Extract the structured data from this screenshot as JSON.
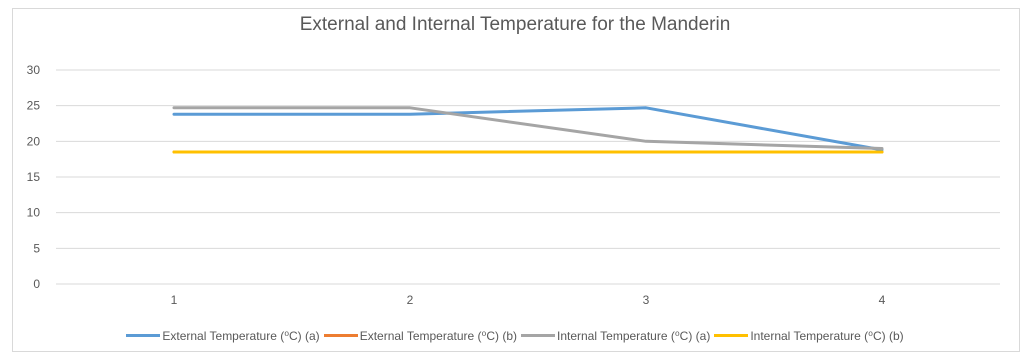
{
  "chart_data": {
    "type": "line",
    "title": "External and Internal Temperature for the Manderin",
    "xlabel": "",
    "ylabel": "",
    "categories": [
      "1",
      "2",
      "3",
      "4"
    ],
    "ylim": [
      0,
      30
    ],
    "yticks": [
      "0",
      "5",
      "10",
      "15",
      "20",
      "25",
      "30"
    ],
    "grid": true,
    "legend_position": "bottom",
    "series": [
      {
        "name": "External Temperature (⁰C) (a)",
        "values": [
          23.8,
          23.8,
          24.7,
          18.8
        ],
        "color": "#5b9bd5"
      },
      {
        "name": "External Temperature (⁰C) (b)",
        "values": [
          18.5,
          18.5,
          18.5,
          18.5
        ],
        "color": "#ed7d31"
      },
      {
        "name": "Internal Temperature (⁰C) (a)",
        "values": [
          24.7,
          24.7,
          20.0,
          19.0
        ],
        "color": "#a5a5a5"
      },
      {
        "name": "Internal Temperature (⁰C) (b)",
        "values": [
          18.5,
          18.5,
          18.5,
          18.5
        ],
        "color": "#ffc000"
      }
    ]
  }
}
